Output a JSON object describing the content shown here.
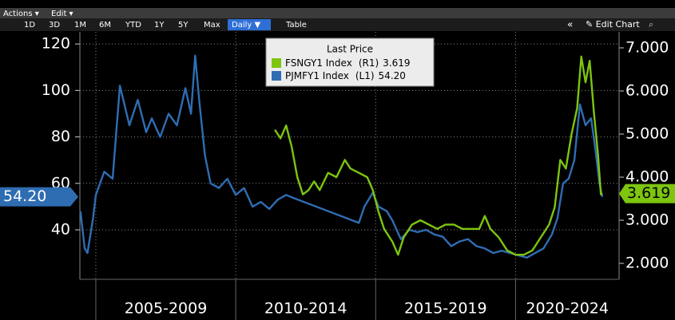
{
  "toolbar": {
    "menus": [
      "Actions ▾",
      "Edit ▾"
    ],
    "ranges": [
      "1D",
      "3D",
      "1M",
      "6M",
      "YTD",
      "1Y",
      "5Y",
      "Max",
      "Daily ▼",
      "Table"
    ],
    "tools": [
      "«",
      "✎ Edit Chart"
    ]
  },
  "chart_data": {
    "type": "line",
    "legend_title": "Last Price",
    "xlim": [
      2004.43,
      2023.7
    ],
    "xticks": [
      {
        "value": 2005,
        "label": "2005-2009"
      },
      {
        "value": 2010,
        "label": "2010-2014"
      },
      {
        "value": 2015,
        "label": "2015-2019"
      },
      {
        "value": 2020,
        "label": "2020-2024"
      }
    ],
    "ylim": [
      18.7,
      125.2
    ],
    "yticks": [
      40,
      60,
      80,
      100,
      120
    ],
    "y2lim": [
      1.63,
      7.37
    ],
    "y2ticks": [
      {
        "value": 2,
        "label": "2.000"
      },
      {
        "value": 3,
        "label": "3.000"
      },
      {
        "value": 4,
        "label": "4.000"
      },
      {
        "value": 5,
        "label": "5.000"
      },
      {
        "value": 6,
        "label": "6.000"
      },
      {
        "value": 7,
        "label": "7.000"
      }
    ],
    "grid": true,
    "series": [
      {
        "name": "FSNGY1 Index",
        "axis_tag": "(R1)",
        "axis": "y2",
        "color": "#7dc50f",
        "last_value": 3.619,
        "last_label": "3.619",
        "x": [
          2011.4,
          2011.6,
          2011.8,
          2012.0,
          2012.2,
          2012.4,
          2012.6,
          2012.8,
          2013.0,
          2013.3,
          2013.6,
          2013.9,
          2014.1,
          2014.4,
          2014.7,
          2014.9,
          2015.1,
          2015.3,
          2015.6,
          2015.8,
          2016.0,
          2016.3,
          2016.6,
          2016.9,
          2017.2,
          2017.5,
          2017.8,
          2018.1,
          2018.4,
          2018.7,
          2018.9,
          2019.1,
          2019.4,
          2019.7,
          2020.0,
          2020.3,
          2020.6,
          2020.9,
          2021.2,
          2021.4,
          2021.6,
          2021.8,
          2022.0,
          2022.2,
          2022.35,
          2022.5,
          2022.65,
          2022.8,
          2022.95,
          2023.05,
          2023.1
        ],
        "values": [
          5.1,
          4.9,
          5.2,
          4.7,
          4.0,
          3.6,
          3.7,
          3.9,
          3.7,
          4.1,
          4.0,
          4.4,
          4.2,
          4.1,
          4.0,
          3.7,
          3.2,
          2.8,
          2.5,
          2.2,
          2.6,
          2.9,
          3.0,
          2.9,
          2.8,
          2.9,
          2.9,
          2.8,
          2.8,
          2.8,
          3.1,
          2.8,
          2.6,
          2.3,
          2.2,
          2.2,
          2.3,
          2.6,
          2.9,
          3.3,
          4.4,
          4.2,
          5.0,
          5.6,
          6.8,
          6.2,
          6.7,
          5.5,
          4.5,
          3.6,
          3.619
        ]
      },
      {
        "name": "PJMFY1 Index",
        "axis_tag": "(L1)",
        "color": "#2f6db3",
        "last_value": 54.2,
        "last_label": "54.20",
        "x": [
          2004.45,
          2004.6,
          2004.7,
          2004.9,
          2005.0,
          2005.3,
          2005.6,
          2005.86,
          2006.2,
          2006.5,
          2006.8,
          2007.0,
          2007.3,
          2007.6,
          2007.9,
          2008.2,
          2008.4,
          2008.55,
          2008.7,
          2008.9,
          2009.1,
          2009.4,
          2009.7,
          2010.0,
          2010.3,
          2010.6,
          2010.9,
          2011.2,
          2011.5,
          2011.8,
          2012.0,
          2014.4,
          2014.6,
          2014.9,
          2015.1,
          2015.4,
          2015.6,
          2015.9,
          2016.2,
          2016.5,
          2016.8,
          2017.1,
          2017.4,
          2017.7,
          2018.0,
          2018.3,
          2018.6,
          2018.9,
          2019.2,
          2019.5,
          2019.8,
          2020.1,
          2020.4,
          2020.7,
          2021.0,
          2021.3,
          2021.5,
          2021.7,
          2021.9,
          2022.1,
          2022.3,
          2022.5,
          2022.7,
          2022.85,
          2023.0,
          2023.1
        ],
        "values": [
          48,
          32,
          30,
          45,
          55,
          65,
          62,
          102,
          85,
          96,
          82,
          88,
          80,
          90,
          85,
          101,
          90,
          115,
          95,
          72,
          60,
          58,
          62,
          55,
          58,
          50,
          52,
          49,
          53,
          55,
          54,
          43,
          50,
          56,
          50,
          48,
          44,
          36,
          40,
          39,
          40,
          38,
          37,
          33,
          35,
          36,
          33,
          32,
          30,
          31,
          30,
          29,
          28,
          30,
          32,
          38,
          45,
          60,
          62,
          70,
          94,
          85,
          88,
          75,
          60,
          54.2
        ]
      }
    ]
  }
}
